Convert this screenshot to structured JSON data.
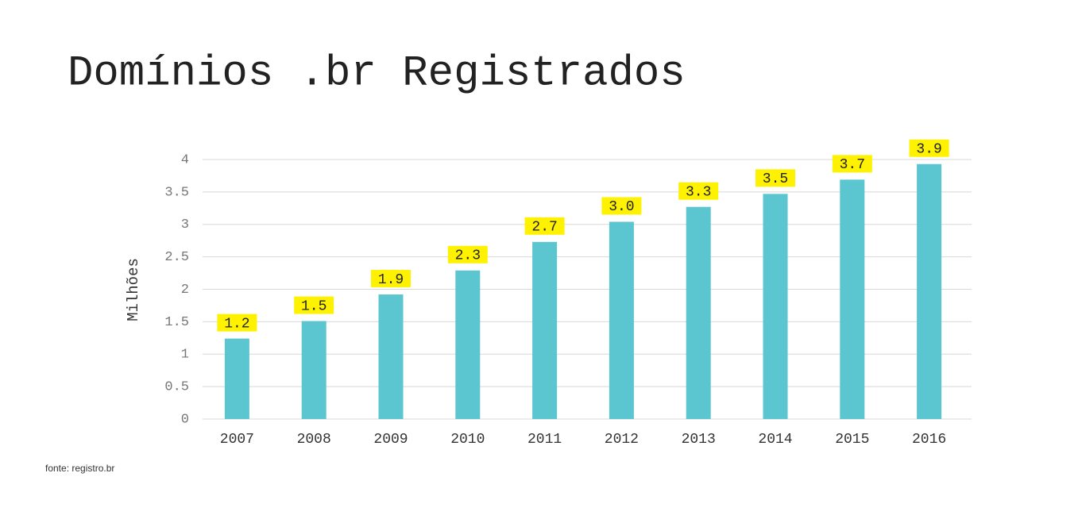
{
  "chart_data": {
    "type": "bar",
    "title": "Domínios .br Registrados",
    "y_label": "Milhões",
    "source": "fonte:  registro.br",
    "categories": [
      "2007",
      "2008",
      "2009",
      "2010",
      "2011",
      "2012",
      "2013",
      "2014",
      "2015",
      "2016"
    ],
    "values": [
      1.24,
      1.51,
      1.92,
      2.29,
      2.73,
      3.04,
      3.27,
      3.47,
      3.69,
      3.93
    ],
    "value_labels": [
      "1.2",
      "1.5",
      "1.9",
      "2.3",
      "2.7",
      "3.0",
      "3.3",
      "3.5",
      "3.7",
      "3.9"
    ],
    "color": "#5bc5d0",
    "label_color": "#fff200",
    "ylim": [
      0,
      4
    ],
    "yticks": [
      0,
      0.5,
      1,
      1.5,
      2,
      2.5,
      3,
      3.5,
      4
    ],
    "grid": true
  }
}
